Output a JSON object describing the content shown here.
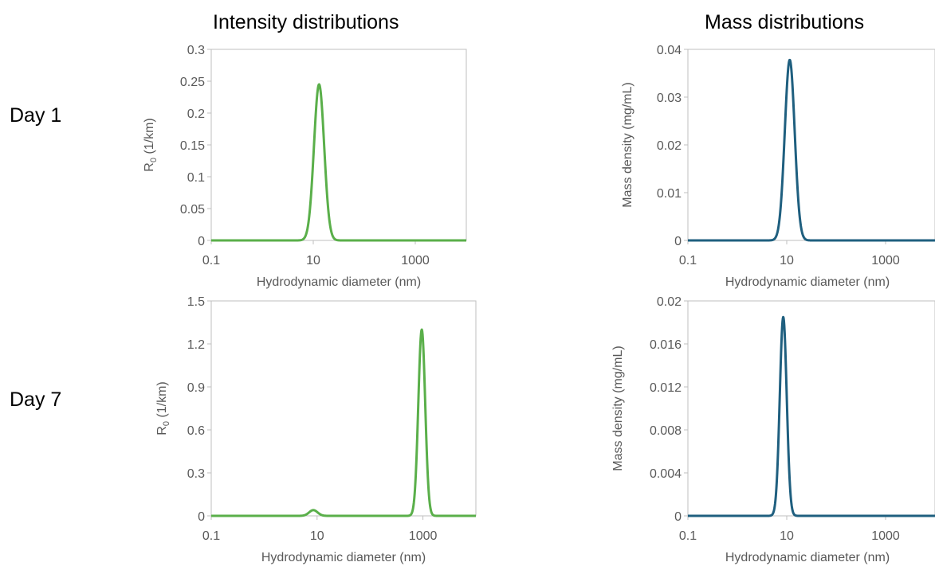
{
  "headings": {
    "left": "Intensity distributions",
    "right": "Mass distributions"
  },
  "rows": {
    "day1": "Day 1",
    "day7": "Day 7"
  },
  "colors": {
    "intensity": "#5aaf4a",
    "mass": "#1f5f7f",
    "axis": "#bfbfbf",
    "text": "#595959"
  },
  "chart_data": [
    {
      "type": "line",
      "panel": "day1-intensity",
      "title": "",
      "xlabel": "Hydrodynamic diameter (nm)",
      "ylabel_main": "R",
      "ylabel_sub": "0",
      "ylabel_tail": " (1/km)",
      "xscale": "log",
      "xlim": [
        0.1,
        10000
      ],
      "xticks": [
        0.1,
        10,
        1000
      ],
      "xticklabels": [
        "0.1",
        "10",
        "1000"
      ],
      "ylim": [
        0,
        0.3
      ],
      "yticklabels": [
        "0",
        "0.05",
        "0.1",
        "0.15",
        "0.2",
        "0.25",
        "0.3"
      ],
      "grid": false,
      "series": [
        {
          "peaks": [
            {
              "center": 13,
              "height": 0.245,
              "width_decades": 0.1
            }
          ]
        }
      ]
    },
    {
      "type": "line",
      "panel": "day1-mass",
      "title": "",
      "xlabel": "Hydrodynamic diameter (nm)",
      "ylabel": "Mass density (mg/mL)",
      "xscale": "log",
      "xlim": [
        0.1,
        10000
      ],
      "xticks": [
        0.1,
        10,
        1000
      ],
      "xticklabels": [
        "0.1",
        "10",
        "1000"
      ],
      "ylim": [
        0,
        0.04
      ],
      "yticklabels": [
        "0",
        "0.01",
        "0.02",
        "0.03",
        "0.04"
      ],
      "grid": false,
      "series": [
        {
          "peaks": [
            {
              "center": 11.5,
              "height": 0.0378,
              "width_decades": 0.1
            }
          ]
        }
      ]
    },
    {
      "type": "line",
      "panel": "day7-intensity",
      "title": "",
      "xlabel": "Hydrodynamic diameter (nm)",
      "ylabel_main": "R",
      "ylabel_sub": "0",
      "ylabel_tail": " (1/km)",
      "xscale": "log",
      "xlim": [
        0.1,
        10000
      ],
      "xticks": [
        0.1,
        10,
        1000
      ],
      "xticklabels": [
        "0.1",
        "10",
        "1000"
      ],
      "ylim": [
        0,
        1.5
      ],
      "yticklabels": [
        "0",
        "0.3",
        "0.6",
        "0.9",
        "1.2",
        "1.5"
      ],
      "grid": false,
      "series": [
        {
          "peaks": [
            {
              "center": 8.5,
              "height": 0.04,
              "width_decades": 0.08
            },
            {
              "center": 950,
              "height": 1.3,
              "width_decades": 0.065
            }
          ]
        }
      ]
    },
    {
      "type": "line",
      "panel": "day7-mass",
      "title": "",
      "xlabel": "Hydrodynamic diameter (nm)",
      "ylabel": "Mass density (mg/mL)",
      "xscale": "log",
      "xlim": [
        0.1,
        10000
      ],
      "xticks": [
        0.1,
        10,
        1000
      ],
      "xticklabels": [
        "0.1",
        "10",
        "1000"
      ],
      "ylim": [
        0,
        0.02
      ],
      "yticklabels": [
        "0",
        "0.004",
        "0.008",
        "0.012",
        "0.016",
        "0.02"
      ],
      "grid": false,
      "series": [
        {
          "peaks": [
            {
              "center": 8.5,
              "height": 0.0185,
              "width_decades": 0.07
            }
          ]
        }
      ]
    }
  ]
}
